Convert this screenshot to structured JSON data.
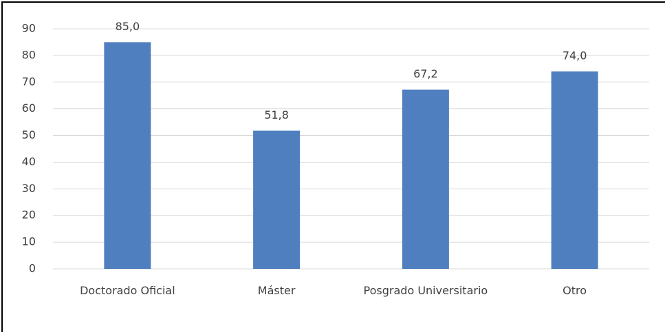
{
  "chart_data": {
    "type": "bar",
    "categories": [
      "Doctorado Oficial",
      "Máster",
      "Posgrado Universitario",
      "Otro"
    ],
    "values": [
      85.0,
      51.8,
      67.2,
      74.0
    ],
    "value_labels": [
      "85,0",
      "51,8",
      "67,2",
      "74,0"
    ],
    "color": "#4f7fbe",
    "ylim": [
      0,
      90
    ],
    "yticks": [
      0,
      10,
      20,
      30,
      40,
      50,
      60,
      70,
      80,
      90
    ],
    "grid": true
  }
}
